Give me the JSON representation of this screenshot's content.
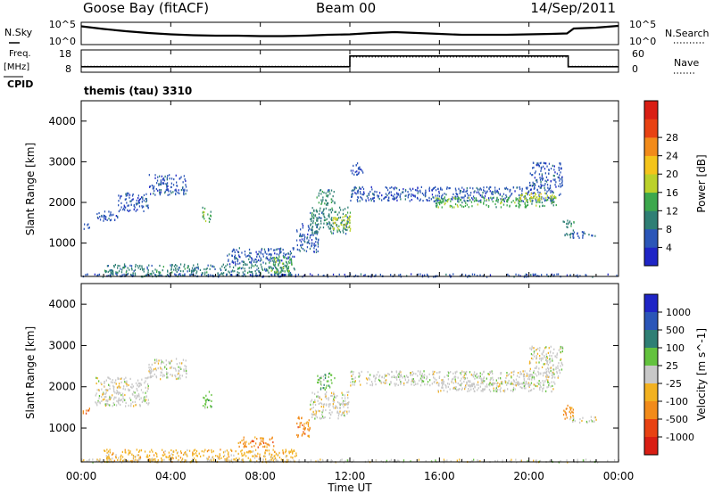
{
  "header": {
    "station": "Goose Bay (fitACF)",
    "beam": "Beam 00",
    "date": "14/Sep/2011"
  },
  "side_labels": {
    "nsky": "N.Sky",
    "nsky_ticks": [
      "10^5",
      "10^0"
    ],
    "freq_label_1": "Freq.",
    "freq_label_2": "[MHz]",
    "freq_ticks": [
      "18",
      "8"
    ],
    "cpid": "CPID",
    "nsearch": "N.Search",
    "nsearch_ticks": [
      "10^5",
      "10^0"
    ],
    "nave": "Nave",
    "nave_ticks": [
      "60",
      "0"
    ],
    "program": "themis (tau) 3310"
  },
  "chart_data": [
    {
      "type": "line",
      "panel": "noise",
      "series": [
        {
          "name": "N.Sky",
          "style": "solid",
          "x": [
            0,
            1,
            2,
            3,
            4,
            5,
            6,
            7,
            8,
            9,
            10,
            11,
            12,
            13,
            14,
            15,
            16,
            17,
            18,
            19,
            20,
            21,
            21.7,
            22,
            23,
            24
          ],
          "y": [
            4.1,
            3.5,
            3.0,
            2.6,
            2.3,
            2.1,
            2.0,
            2.0,
            1.9,
            1.9,
            2.0,
            2.2,
            2.3,
            2.6,
            2.8,
            2.6,
            2.4,
            2.2,
            2.2,
            2.2,
            2.3,
            2.4,
            2.5,
            3.6,
            3.8,
            4.2
          ]
        }
      ],
      "ylim": [
        0,
        5
      ]
    },
    {
      "type": "line",
      "panel": "frequency",
      "series": [
        {
          "name": "Freq.",
          "style": "solid",
          "x": [
            0,
            12,
            12,
            21.75,
            21.75,
            24
          ],
          "y": [
            10.5,
            10.5,
            15.3,
            15.3,
            10.5,
            10.5
          ]
        },
        {
          "name": "Nave",
          "style": "dotted",
          "x": [
            0,
            12,
            12,
            21.75,
            21.75,
            24
          ],
          "y": [
            16,
            16,
            41,
            41,
            16,
            16
          ]
        }
      ],
      "freq_ylim": [
        8,
        18
      ],
      "nave_ylim": [
        0,
        60
      ]
    },
    {
      "type": "heatmap",
      "panel": "power",
      "ylabel": "Slant Range [km]",
      "ylim": [
        180,
        4500
      ],
      "yticks": [
        1000,
        2000,
        3000,
        4000
      ],
      "colorbar": {
        "label": "Power [dB]",
        "ticks": [
          "4",
          "8",
          "12",
          "16",
          "20",
          "24",
          "28"
        ],
        "colors": [
          "#1f25c6",
          "#2b56b8",
          "#2f7f75",
          "#3da84d",
          "#bbd12a",
          "#f4c41b",
          "#f28b1a",
          "#e84213",
          "#d91e14"
        ]
      },
      "bands": [
        {
          "t0": 0.05,
          "t1": 0.35,
          "r0": 1350,
          "r1": 1520,
          "level": 1
        },
        {
          "t0": 0.6,
          "t1": 1.6,
          "r0": 1550,
          "r1": 1800,
          "level": 1
        },
        {
          "t0": 1.6,
          "t1": 3.0,
          "r0": 1800,
          "r1": 2250,
          "level": 1
        },
        {
          "t0": 3.0,
          "t1": 4.7,
          "r0": 2200,
          "r1": 2700,
          "level": 1
        },
        {
          "t0": 5.4,
          "t1": 5.8,
          "r0": 1500,
          "r1": 1900,
          "level": 3
        },
        {
          "t0": 1.0,
          "t1": 9.6,
          "r0": 200,
          "r1": 500,
          "level": 2
        },
        {
          "t0": 6.5,
          "t1": 9.5,
          "r0": 500,
          "r1": 900,
          "level": 1
        },
        {
          "t0": 8.3,
          "t1": 9.4,
          "r0": 300,
          "r1": 700,
          "level": 3
        },
        {
          "t0": 9.6,
          "t1": 10.6,
          "r0": 800,
          "r1": 1500,
          "level": 1
        },
        {
          "t0": 10.2,
          "t1": 12.0,
          "r0": 1250,
          "r1": 1900,
          "level": 2
        },
        {
          "t0": 11.2,
          "t1": 12.0,
          "r0": 1300,
          "r1": 1700,
          "level": 4
        },
        {
          "t0": 10.5,
          "t1": 11.3,
          "r0": 1950,
          "r1": 2350,
          "level": 2
        },
        {
          "t0": 12.0,
          "t1": 12.6,
          "r0": 2700,
          "r1": 3000,
          "level": 1
        },
        {
          "t0": 12.0,
          "t1": 21.4,
          "r0": 2050,
          "r1": 2400,
          "level": 1
        },
        {
          "t0": 15.8,
          "t1": 21.2,
          "r0": 1900,
          "r1": 2150,
          "level": 3
        },
        {
          "t0": 19.5,
          "t1": 21.2,
          "r0": 2050,
          "r1": 2250,
          "level": 4
        },
        {
          "t0": 20.0,
          "t1": 21.5,
          "r0": 2400,
          "r1": 3000,
          "level": 1
        },
        {
          "t0": 21.5,
          "t1": 22.0,
          "r0": 1200,
          "r1": 1600,
          "level": 2
        },
        {
          "t0": 21.8,
          "t1": 23.0,
          "r0": 1150,
          "r1": 1300,
          "level": 1
        },
        {
          "t0": 0.0,
          "t1": 24.0,
          "r0": 190,
          "r1": 260,
          "level": 1
        }
      ]
    },
    {
      "type": "heatmap",
      "panel": "velocity",
      "ylabel": "Slant Range [km]",
      "xlabel": "Time UT",
      "ylim": [
        180,
        4500
      ],
      "yticks": [
        1000,
        2000,
        3000,
        4000
      ],
      "xticks": [
        "00:00",
        "04:00",
        "08:00",
        "12:00",
        "16:00",
        "20:00",
        "00:00"
      ],
      "colorbar": {
        "label": "Velocity [m s^-1]",
        "ticks": [
          "1000",
          "500",
          "100",
          "25",
          "-25",
          "-100",
          "-500",
          "-1000"
        ],
        "colors": [
          "#1f25c6",
          "#2b56b8",
          "#2f7f75",
          "#63c23e",
          "#c8c8c8",
          "#f2b120",
          "#f28b1a",
          "#e84213",
          "#d91e14"
        ]
      },
      "bands": [
        {
          "t0": 0.05,
          "t1": 0.35,
          "r0": 1350,
          "r1": 1520,
          "level": 6
        },
        {
          "t0": 0.6,
          "t1": 3.0,
          "r0": 1550,
          "r1": 2250,
          "level": 4
        },
        {
          "t0": 3.0,
          "t1": 4.7,
          "r0": 2200,
          "r1": 2700,
          "level": 4
        },
        {
          "t0": 5.4,
          "t1": 5.8,
          "r0": 1500,
          "r1": 1900,
          "level": 3
        },
        {
          "t0": 1.0,
          "t1": 9.6,
          "r0": 200,
          "r1": 500,
          "level": 5
        },
        {
          "t0": 7.0,
          "t1": 8.6,
          "r0": 550,
          "r1": 800,
          "level": 6
        },
        {
          "t0": 9.6,
          "t1": 10.2,
          "r0": 800,
          "r1": 1300,
          "level": 6
        },
        {
          "t0": 10.2,
          "t1": 12.0,
          "r0": 1250,
          "r1": 1900,
          "level": 4
        },
        {
          "t0": 10.5,
          "t1": 11.3,
          "r0": 1950,
          "r1": 2350,
          "level": 3
        },
        {
          "t0": 12.0,
          "t1": 21.4,
          "r0": 2050,
          "r1": 2400,
          "level": 4
        },
        {
          "t0": 15.8,
          "t1": 21.2,
          "r0": 1900,
          "r1": 2150,
          "level": 4
        },
        {
          "t0": 20.0,
          "t1": 21.5,
          "r0": 2400,
          "r1": 3000,
          "level": 4
        },
        {
          "t0": 21.5,
          "t1": 22.0,
          "r0": 1200,
          "r1": 1600,
          "level": 6
        },
        {
          "t0": 21.8,
          "t1": 23.0,
          "r0": 1150,
          "r1": 1300,
          "level": 4
        },
        {
          "t0": 0.0,
          "t1": 24.0,
          "r0": 190,
          "r1": 260,
          "level": 4
        }
      ]
    }
  ]
}
